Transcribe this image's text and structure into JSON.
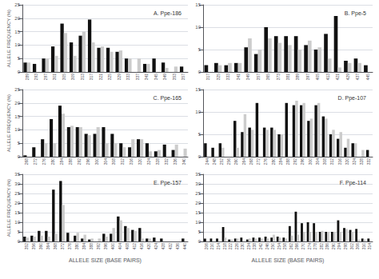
{
  "chart_data": [
    {
      "type": "bar",
      "title": "A. Ppe-186",
      "ylabel": "ALLELE FREQUENCY (%)",
      "categories": [
        "289",
        "293",
        "297",
        "301",
        "305",
        "309",
        "313",
        "317",
        "321",
        "325",
        "329",
        "333",
        "337",
        "341",
        "345",
        "349",
        "353",
        "357"
      ],
      "series": [
        {
          "color": "#111111",
          "values": [
            3.5,
            3.0,
            5.0,
            9.5,
            18.0,
            11.0,
            13.5,
            19.5,
            9.0,
            9.0,
            7.5,
            5.0,
            0,
            3.0,
            5.0,
            3.5,
            0,
            2.0
          ]
        },
        {
          "color": "#cccccc",
          "values": [
            3.5,
            0,
            5.0,
            6.0,
            14.5,
            6.0,
            15.0,
            11.0,
            9.5,
            7.5,
            8.0,
            5.0,
            5.0,
            3.0,
            0,
            1.5,
            2.0,
            0
          ]
        }
      ],
      "ylim": [
        0,
        25
      ],
      "yticks": [
        0,
        5,
        10,
        15,
        20,
        25
      ],
      "grid": true
    },
    {
      "type": "bar",
      "title": "B. Ppe-5",
      "categories": [
        "317",
        "325",
        "333",
        "341",
        "349",
        "357",
        "365",
        "373",
        "381",
        "389",
        "397",
        "405",
        "413",
        "421",
        "429",
        "437",
        "445"
      ],
      "series": [
        {
          "color": "#111111",
          "values": [
            1.5,
            2.0,
            1.5,
            2.0,
            5.5,
            4.0,
            10.0,
            8.0,
            8.0,
            8.0,
            6.0,
            5.0,
            8.5,
            12.5,
            2.5,
            3.0,
            1.5
          ]
        },
        {
          "color": "#cccccc",
          "values": [
            0,
            1.5,
            2.0,
            2.0,
            7.5,
            5.0,
            7.5,
            6.5,
            6.0,
            5.0,
            7.0,
            5.5,
            3.0,
            1.0,
            2.0,
            2.0,
            0
          ]
        }
      ],
      "ylim": [
        0,
        15
      ],
      "yticks": [
        0,
        5,
        10,
        15
      ],
      "grid": true
    },
    {
      "type": "bar",
      "title": "C. Ppe-165",
      "ylabel": "ALLELE FREQUENCY (%)",
      "categories": [
        "268",
        "272",
        "276",
        "280",
        "284",
        "288",
        "292",
        "296",
        "300",
        "304",
        "308",
        "312",
        "316",
        "320",
        "324",
        "328",
        "332",
        "336",
        "340"
      ],
      "series": [
        {
          "color": "#111111",
          "values": [
            0.5,
            3.5,
            6.5,
            14.0,
            19.0,
            11.0,
            11.0,
            8.5,
            8.5,
            11.0,
            8.5,
            5.0,
            3.5,
            6.5,
            5.0,
            2.0,
            4.5,
            2.5,
            0
          ]
        },
        {
          "color": "#cccccc",
          "values": [
            0,
            0,
            5.0,
            5.0,
            16.0,
            11.5,
            11.0,
            8.0,
            11.0,
            5.0,
            5.0,
            3.5,
            6.5,
            6.5,
            2.0,
            2.5,
            0,
            4.5,
            3.0
          ]
        }
      ],
      "ylim": [
        0,
        25
      ],
      "yticks": [
        0,
        5,
        10,
        15,
        20,
        25
      ],
      "grid": true
    },
    {
      "type": "bar",
      "title": "D. Ppe-107",
      "categories": [
        "244",
        "248",
        "252",
        "256",
        "260",
        "264",
        "268",
        "272",
        "276",
        "280",
        "284",
        "288",
        "292",
        "296",
        "300",
        "304",
        "308",
        "312",
        "316",
        "320",
        "324",
        "328",
        "332"
      ],
      "series": [
        {
          "color": "#111111",
          "values": [
            3.0,
            2.0,
            3.0,
            0,
            8.0,
            5.5,
            6.5,
            12.0,
            6.5,
            6.5,
            5.0,
            12.0,
            11.5,
            11.5,
            8.0,
            11.5,
            9.0,
            5.0,
            4.0,
            2.0,
            3.0,
            0,
            1.5
          ]
        },
        {
          "color": "#cccccc",
          "values": [
            0,
            0,
            2.0,
            0,
            2.0,
            9.5,
            6.0,
            0,
            6.0,
            6.0,
            5.0,
            0,
            12.5,
            12.0,
            8.5,
            12.0,
            8.5,
            6.0,
            5.5,
            4.0,
            3.0,
            1.5,
            0
          ]
        }
      ],
      "ylim": [
        0,
        15
      ],
      "yticks": [
        0,
        5,
        10,
        15
      ],
      "grid": true
    },
    {
      "type": "bar",
      "title": "E. Ppe-157",
      "ylabel": "ALLELE FREQUENCY (%)",
      "xlabel": "ALLELE SIZE (BASE PAIRS)",
      "categories": [
        "352",
        "356",
        "360",
        "364",
        "368",
        "372",
        "376",
        "380",
        "384",
        "388",
        "392",
        "396",
        "400",
        "404",
        "408",
        "412",
        "416",
        "420",
        "424",
        "428",
        "432",
        "436",
        "440"
      ],
      "series": [
        {
          "color": "#111111",
          "values": [
            2.5,
            3.0,
            5.5,
            5.5,
            27.0,
            31.5,
            4.5,
            3.0,
            1.5,
            1.0,
            0,
            4.0,
            4.0,
            13.0,
            8.0,
            6.0,
            7.0,
            1.5,
            2.0,
            1.5,
            0,
            0,
            1.5
          ]
        },
        {
          "color": "#cccccc",
          "values": [
            2.0,
            2.5,
            3.0,
            2.5,
            4.0,
            19.0,
            0,
            4.5,
            3.5,
            1.5,
            1.5,
            2.5,
            7.0,
            11.0,
            7.0,
            5.5,
            1.5,
            1.5,
            0,
            0,
            0,
            0,
            0
          ]
        }
      ],
      "ylim": [
        0,
        35
      ],
      "yticks": [
        0,
        5,
        10,
        15,
        20,
        25,
        30,
        35
      ],
      "grid": true
    },
    {
      "type": "bar",
      "title": "F. Ppe-114",
      "xlabel": "ALLELE SIZE (BASE PAIRS)",
      "categories": [
        "206",
        "210",
        "214",
        "218",
        "222",
        "226",
        "230",
        "234",
        "238",
        "242",
        "246",
        "250",
        "254",
        "258",
        "262",
        "266",
        "270",
        "274",
        "278",
        "282",
        "286",
        "290",
        "294",
        "298",
        "302",
        "306",
        "310",
        "314"
      ],
      "series": [
        {
          "color": "#111111",
          "values": [
            1.5,
            1.5,
            1.5,
            7.5,
            1.0,
            1.5,
            2.0,
            1.0,
            2.0,
            2.0,
            2.5,
            2.0,
            2.5,
            2.0,
            8.0,
            15.5,
            9.5,
            10.0,
            9.5,
            5.0,
            5.0,
            5.0,
            11.0,
            7.0,
            6.0,
            6.5,
            1.5,
            1.5
          ]
        },
        {
          "color": "#cccccc",
          "values": [
            0,
            0,
            0,
            2.0,
            1.0,
            1.5,
            0,
            1.5,
            1.5,
            1.5,
            1.5,
            3.5,
            2.0,
            1.5,
            3.0,
            3.5,
            5.0,
            5.0,
            5.0,
            5.5,
            5.0,
            5.0,
            5.0,
            6.5,
            5.0,
            1.0,
            1.0,
            0
          ]
        }
      ],
      "ylim": [
        0,
        35
      ],
      "yticks": [
        0,
        5,
        10,
        15,
        20,
        25,
        30,
        35
      ],
      "grid": true
    }
  ]
}
